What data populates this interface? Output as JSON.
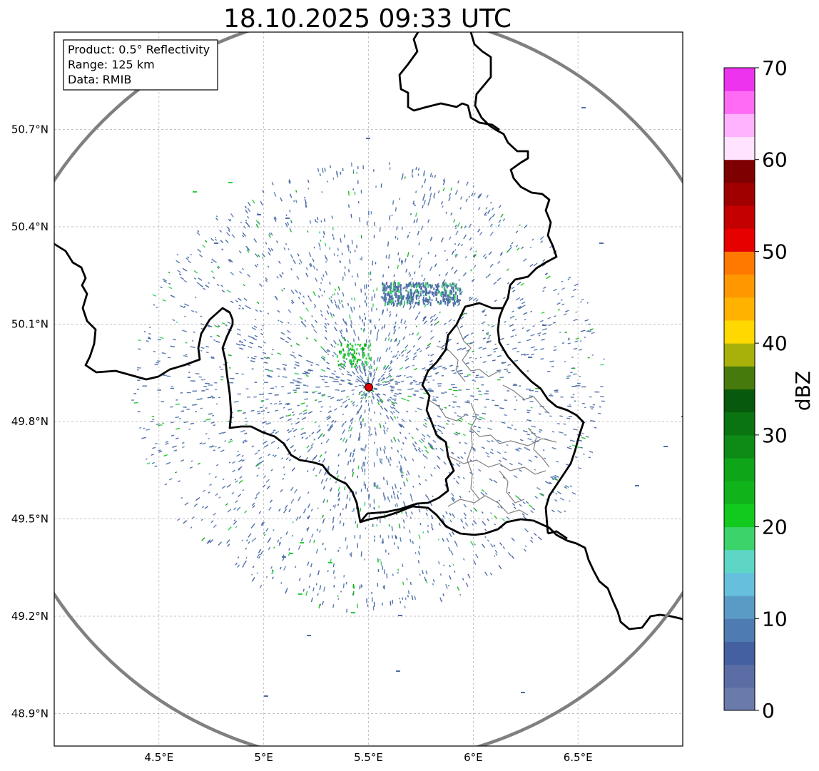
{
  "title": "18.10.2025 09:33 UTC",
  "info": {
    "product": "Product: 0.5° Reflectivity",
    "range": "Range: 125 km",
    "data": "Data: RMIB"
  },
  "axes": {
    "xticks": [
      {
        "value": 4.5,
        "label": "4.5°E"
      },
      {
        "value": 5.0,
        "label": "5°E"
      },
      {
        "value": 5.5,
        "label": "5.5°E"
      },
      {
        "value": 6.0,
        "label": "6°E"
      },
      {
        "value": 6.5,
        "label": "6.5°E"
      }
    ],
    "yticks": [
      {
        "value": 50.7,
        "label": "50.7°N"
      },
      {
        "value": 50.4,
        "label": "50.4°N"
      },
      {
        "value": 50.1,
        "label": "50.1°N"
      },
      {
        "value": 49.8,
        "label": "49.8°N"
      },
      {
        "value": 49.5,
        "label": "49.5°N"
      },
      {
        "value": 49.2,
        "label": "49.2°N"
      },
      {
        "value": 48.9,
        "label": "48.9°N"
      }
    ],
    "lon_range": [
      4.0,
      7.0
    ],
    "lat_range": [
      48.8,
      51.0
    ],
    "grid": true
  },
  "radar": {
    "site_lon": 5.505,
    "site_lat": 49.915,
    "range_km": 125,
    "site_color": "#e00000",
    "ring_color": "#808080"
  },
  "colorbar": {
    "label": "dBZ",
    "min": 0,
    "max": 70,
    "step": 2.5,
    "ticks": [
      "0",
      "10",
      "20",
      "30",
      "40",
      "50",
      "60",
      "70"
    ],
    "colors": [
      "#6a7aaa",
      "#5a6da5",
      "#4460a0",
      "#4e7bb1",
      "#5a9bc6",
      "#66c0dd",
      "#5ed6c6",
      "#3cd36a",
      "#12c91e",
      "#10b41a",
      "#0fa518",
      "#0e8a16",
      "#0a7411",
      "#07590d",
      "#477a0c",
      "#a8b00a",
      "#ffd800",
      "#ffb300",
      "#ff9800",
      "#ff7900",
      "#e60000",
      "#c40000",
      "#a00000",
      "#7e0000",
      "#ffe3ff",
      "#ffb3ff",
      "#ff6bf5",
      "#ee33ee"
    ]
  },
  "borders": {
    "country_color": "#000000",
    "region_color": "#808080"
  }
}
